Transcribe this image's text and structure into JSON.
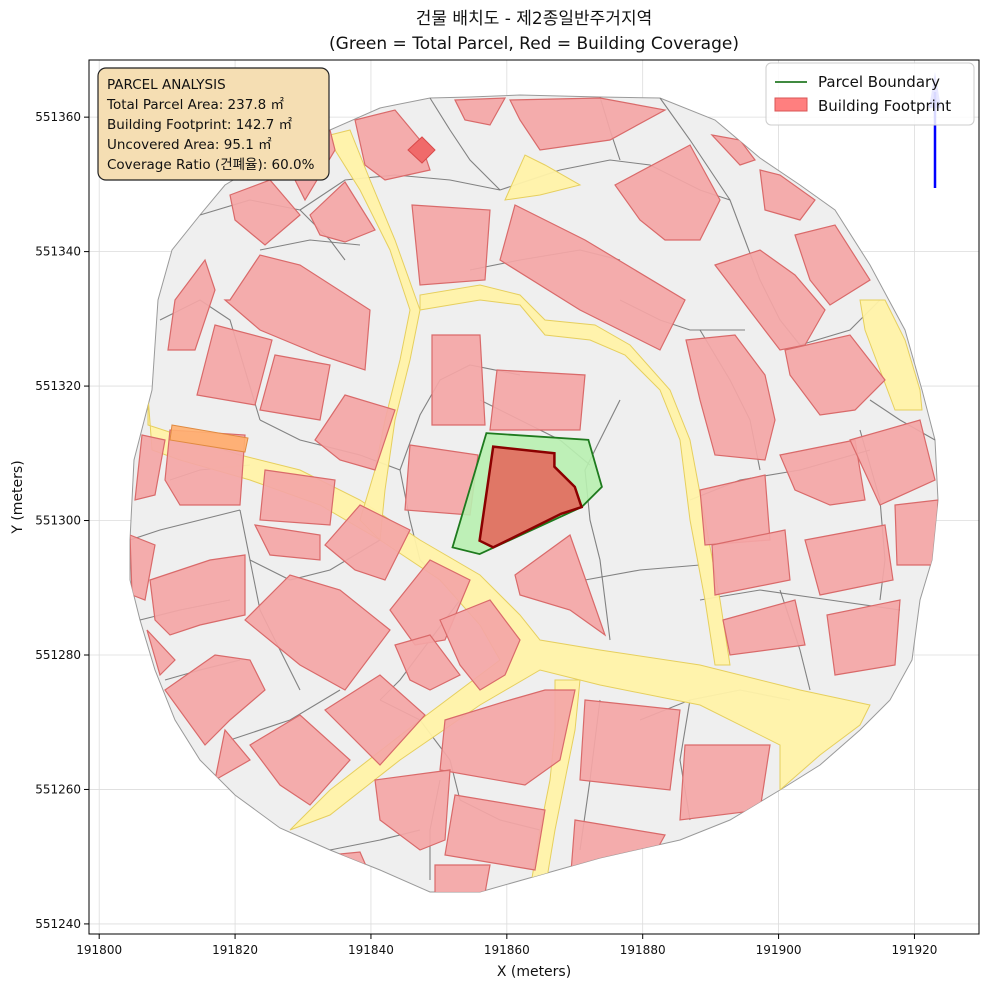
{
  "chart_data": {
    "type": "map",
    "title": "건물 배치도 - 제2종일반주거지역",
    "subtitle": "(Green = Total Parcel, Red = Building Coverage)",
    "xlabel": "X (meters)",
    "ylabel": "Y (meters)",
    "xlim": [
      191798.5,
      191929.5
    ],
    "ylim": [
      551238.5,
      551368.5
    ],
    "xticks": [
      191800,
      191820,
      191840,
      191860,
      191880,
      191900,
      191920
    ],
    "yticks": [
      551240,
      551260,
      551280,
      551300,
      551320,
      551340,
      551360
    ],
    "grid": true,
    "legend_position": "top-right",
    "legend": [
      {
        "label": "Parcel Boundary",
        "color": "#006400",
        "kind": "line"
      },
      {
        "label": "Building Footprint",
        "color": "#ff7f7f",
        "kind": "patch"
      }
    ],
    "annotation": {
      "title": "PARCEL ANALYSIS",
      "lines": [
        "Total Parcel Area: 237.8 ㎡",
        "Building Footprint: 142.7 ㎡",
        "Uncovered Area: 95.1 ㎡",
        "Coverage Ratio (건폐율): 60.0%"
      ]
    },
    "target_parcel": {
      "area_m2": 237.8,
      "footprint_m2": 142.7,
      "uncovered_m2": 95.1,
      "coverage_ratio_pct": 60.0,
      "boundary": [
        [
          191857,
          551313
        ],
        [
          191872,
          551312
        ],
        [
          191874,
          551305
        ],
        [
          191871,
          551302
        ],
        [
          191856,
          551295
        ],
        [
          191852,
          551296
        ],
        [
          191857,
          551313
        ]
      ],
      "footprint": [
        [
          191858,
          551311
        ],
        [
          191867,
          551310
        ],
        [
          191867,
          551308
        ],
        [
          191870,
          551305
        ],
        [
          191871,
          551302
        ],
        [
          191868,
          551301
        ],
        [
          191858,
          551296
        ],
        [
          191856,
          551297
        ],
        [
          191858,
          551311
        ]
      ]
    },
    "colors": {
      "site_fill": "#efefef",
      "parcel_line": "#6e6e6e",
      "road_fill": "#fff2a8",
      "road_line": "#e6cf5e",
      "building_fill": "#f4a6a6",
      "building_line": "#d96a6a",
      "target_fill": "#b8f0b0",
      "target_line": "#1e7a1e",
      "footprint_fill": "#e07766",
      "footprint_line": "#8b0000",
      "north_arrow": "#0000ff"
    }
  }
}
